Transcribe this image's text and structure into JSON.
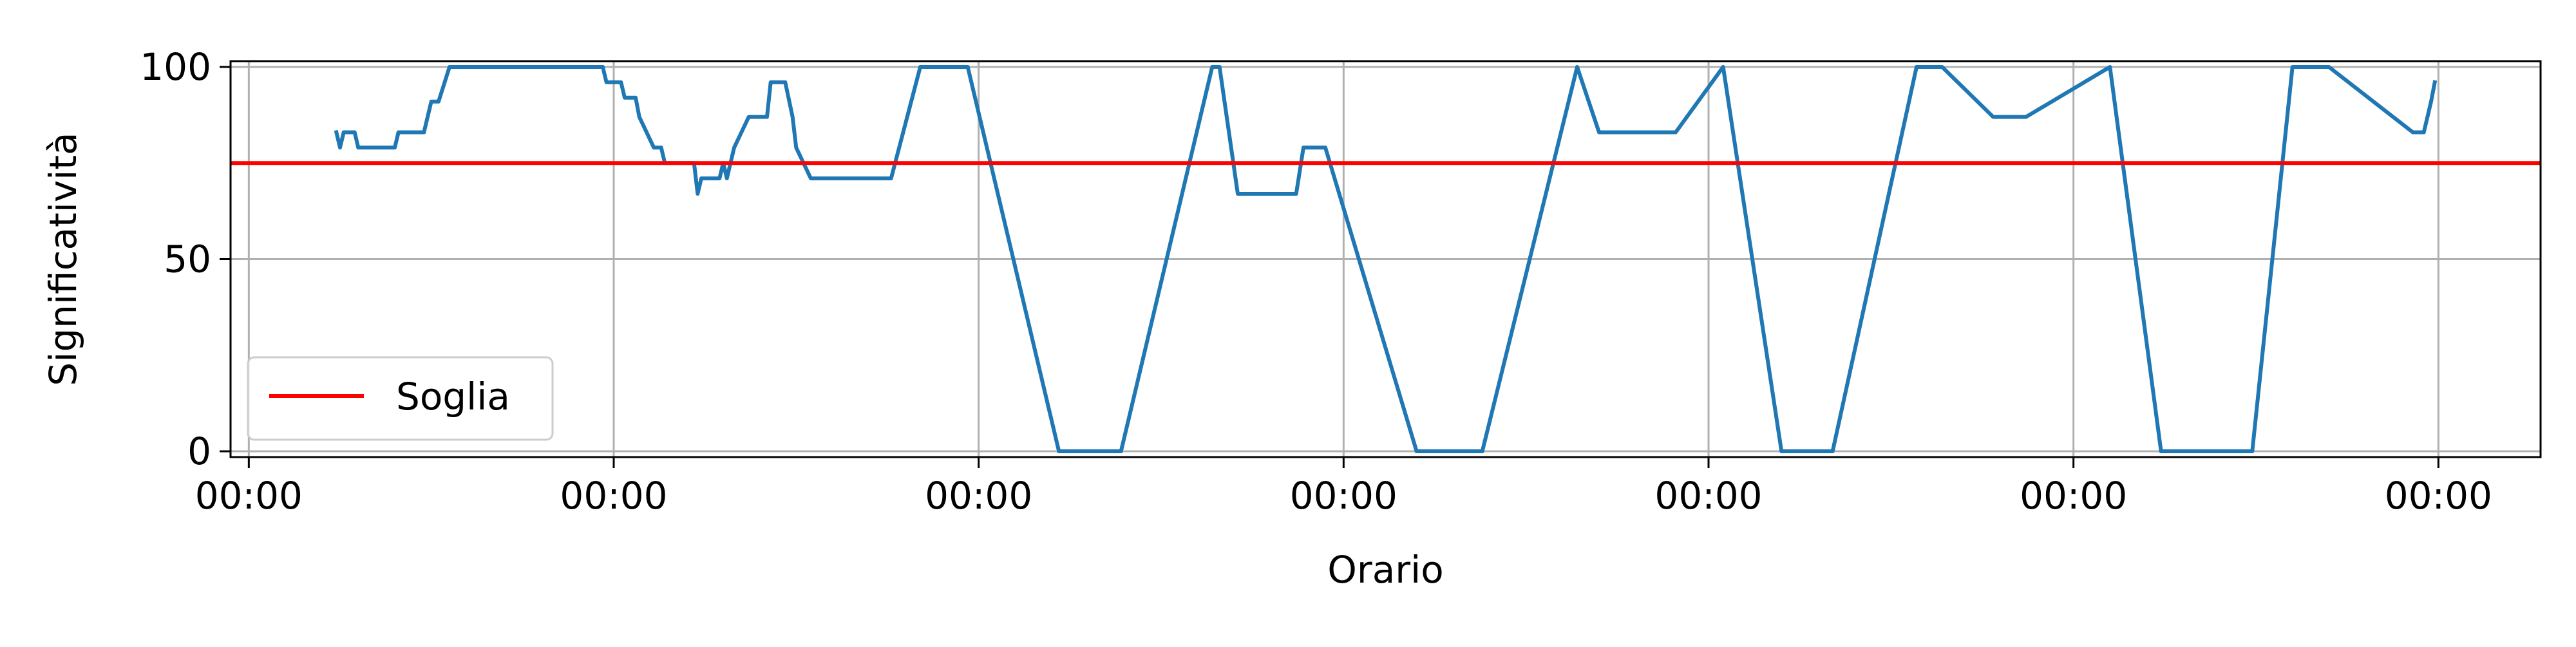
{
  "chart_data": {
    "type": "line",
    "title": "",
    "xlabel": "Orario",
    "ylabel": "Significatività",
    "xlim": [
      -0.05,
      6.28
    ],
    "ylim": [
      -1.5,
      101.5
    ],
    "x_tick_positions": [
      0,
      1,
      2,
      3,
      4,
      5,
      6
    ],
    "x_tick_labels": [
      "00:00",
      "00:00",
      "00:00",
      "00:00",
      "00:00",
      "00:00",
      "00:00"
    ],
    "y_ticks": [
      0,
      50,
      100
    ],
    "y_tick_labels": [
      "0",
      "50",
      "100"
    ],
    "grid": true,
    "legend_position": "lower-left",
    "series": [
      {
        "color": "#1f77b4",
        "x": [
          0.24,
          0.25,
          0.26,
          0.29,
          0.3,
          0.4,
          0.41,
          0.48,
          0.5,
          0.52,
          0.55,
          0.97,
          0.98,
          1.02,
          1.03,
          1.06,
          1.07,
          1.11,
          1.13,
          1.14,
          1.22,
          1.23,
          1.24,
          1.29,
          1.3,
          1.31,
          1.33,
          1.35,
          1.37,
          1.42,
          1.43,
          1.47,
          1.49,
          1.5,
          1.54,
          1.56,
          1.58,
          1.59,
          1.6,
          1.76,
          1.84,
          1.97,
          2.22,
          2.39,
          2.64,
          2.66,
          2.71,
          2.87,
          2.89,
          2.95,
          3.2,
          3.38,
          3.64,
          3.7,
          3.91,
          4.04,
          4.2,
          4.34,
          4.57,
          4.64,
          4.78,
          4.87,
          5.1,
          5.24,
          5.49,
          5.6,
          5.7,
          5.93,
          5.96,
          5.98,
          5.99
        ],
        "y": [
          83,
          79,
          83,
          83,
          79,
          79,
          83,
          83,
          91,
          91,
          100,
          100,
          96,
          96,
          92,
          92,
          87,
          79,
          79,
          75,
          75,
          67,
          71,
          71,
          75,
          71,
          79,
          83,
          87,
          87,
          96,
          96,
          87,
          79,
          71,
          71,
          71,
          71,
          71,
          71,
          100,
          100,
          0,
          0,
          100,
          100,
          67,
          67,
          79,
          79,
          0,
          0,
          100,
          83,
          83,
          100,
          0,
          0,
          100,
          100,
          87,
          87,
          100,
          0,
          0,
          100,
          100,
          83,
          83,
          91,
          96
        ]
      },
      {
        "name": "Soglia",
        "color": "#ff0000",
        "constant_y": 75
      }
    ]
  }
}
